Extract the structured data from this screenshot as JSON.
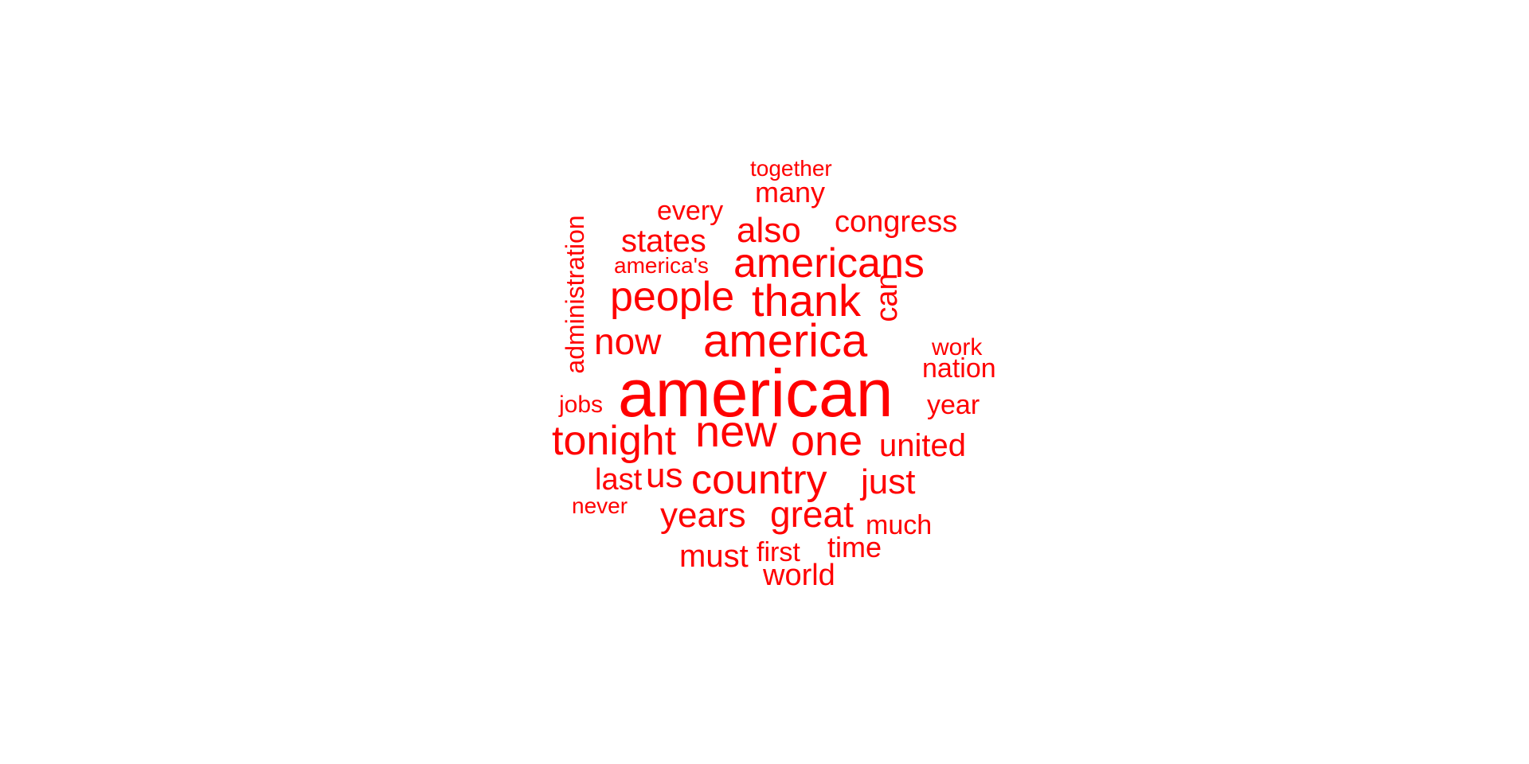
{
  "word_color": "#ff0000",
  "background_color": "#ffffff",
  "words": [
    {
      "text": "american"
    },
    {
      "text": "america"
    },
    {
      "text": "americans"
    },
    {
      "text": "thank"
    },
    {
      "text": "people"
    },
    {
      "text": "new"
    },
    {
      "text": "one"
    },
    {
      "text": "tonight"
    },
    {
      "text": "country"
    },
    {
      "text": "now"
    },
    {
      "text": "also"
    },
    {
      "text": "states"
    },
    {
      "text": "years"
    },
    {
      "text": "great"
    },
    {
      "text": "us"
    },
    {
      "text": "just"
    },
    {
      "text": "united"
    },
    {
      "text": "can"
    },
    {
      "text": "administration"
    },
    {
      "text": "congress"
    },
    {
      "text": "many"
    },
    {
      "text": "every"
    },
    {
      "text": "nation"
    },
    {
      "text": "year"
    },
    {
      "text": "last"
    },
    {
      "text": "much"
    },
    {
      "text": "must"
    },
    {
      "text": "world"
    },
    {
      "text": "time"
    },
    {
      "text": "first"
    },
    {
      "text": "together"
    },
    {
      "text": "america's"
    },
    {
      "text": "work"
    },
    {
      "text": "jobs"
    },
    {
      "text": "never"
    }
  ]
}
